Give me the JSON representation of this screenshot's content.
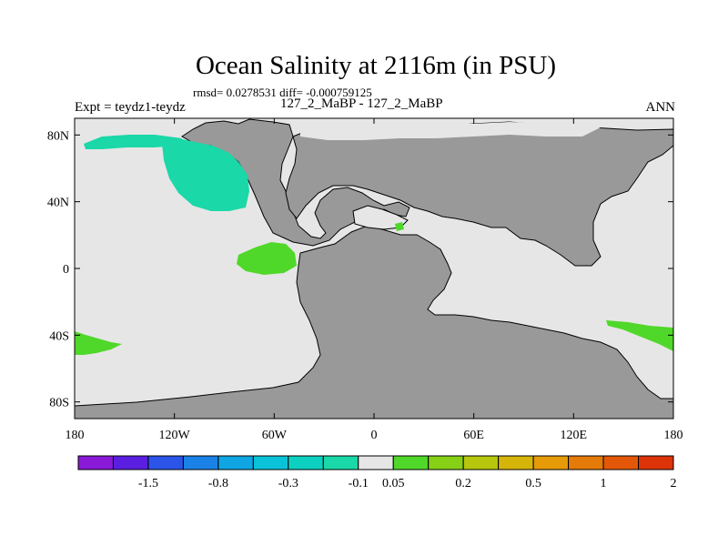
{
  "title": "Ocean Salinity at 2116m (in PSU)",
  "stats": "rmsd= 0.0278531 diff= -0.000759125",
  "experiment": "Expt = teydz1-teydz",
  "subtitle": "127_2_MaBP - 127_2_MaBP",
  "season": "ANN",
  "map": {
    "projection": "cylindrical equidistant",
    "lon_range": [
      -180,
      180
    ],
    "lat_range": [
      -90,
      90
    ],
    "x_ticks": [
      {
        "lon": -180,
        "label": "180"
      },
      {
        "lon": -120,
        "label": "120W"
      },
      {
        "lon": -60,
        "label": "60W"
      },
      {
        "lon": 0,
        "label": "0"
      },
      {
        "lon": 60,
        "label": "60E"
      },
      {
        "lon": 120,
        "label": "120E"
      },
      {
        "lon": 180,
        "label": "180"
      }
    ],
    "y_ticks": [
      {
        "lat": 80,
        "label": "80N"
      },
      {
        "lat": 40,
        "label": "40N"
      },
      {
        "lat": 0,
        "label": "0"
      },
      {
        "lat": -40,
        "label": "40S"
      },
      {
        "lat": -80,
        "label": "80S"
      }
    ],
    "ocean_background_color": "#e6e6e6",
    "land_color": "#999999"
  },
  "colorbar": {
    "colors": [
      "#8a19d8",
      "#5a1fe0",
      "#2b54e8",
      "#1a82e6",
      "#0fa6e3",
      "#0bc3d8",
      "#0dd1c0",
      "#1ad8a8",
      "#e6e6e6",
      "#4fd829",
      "#86d016",
      "#b6c70d",
      "#d6b50a",
      "#e69b08",
      "#e47a08",
      "#e35808",
      "#dd3309"
    ],
    "labels": [
      {
        "after_box": 2,
        "text": "-1.5"
      },
      {
        "after_box": 4,
        "text": "-0.8"
      },
      {
        "after_box": 6,
        "text": "-0.3"
      },
      {
        "after_box": 8,
        "text": "-0.1"
      },
      {
        "after_box": 9,
        "text": "0.05"
      },
      {
        "after_box": 11,
        "text": "0.2"
      },
      {
        "after_box": 13,
        "text": "0.5"
      },
      {
        "after_box": 15,
        "text": "1"
      },
      {
        "after_box": 17,
        "text": "2"
      }
    ]
  }
}
